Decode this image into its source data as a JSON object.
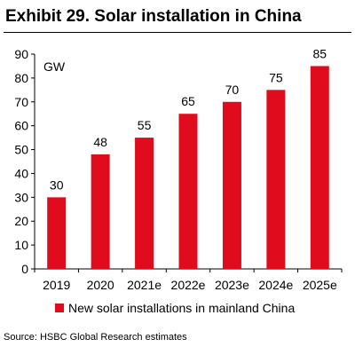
{
  "header": {
    "title": "Exhibit 29. Solar installation in China"
  },
  "footer": {
    "source": "Source: HSBC Global Research estimates"
  },
  "colors": {
    "bar": "#e00b1c",
    "axis": "#000000"
  },
  "chart_data": {
    "type": "bar",
    "title": "",
    "xlabel": "",
    "ylabel": "",
    "unit_label": "GW",
    "categories": [
      "2019",
      "2020",
      "2021e",
      "2022e",
      "2023e",
      "2024e",
      "2025e"
    ],
    "series": [
      {
        "name": "New solar installations in mainland China",
        "values": [
          30,
          48,
          55,
          65,
          70,
          75,
          85
        ]
      }
    ],
    "ylim": [
      0,
      90
    ],
    "yticks": [
      0,
      10,
      20,
      30,
      40,
      50,
      60,
      70,
      80,
      90
    ],
    "data_labels": true,
    "grid": false,
    "legend": "bottom"
  }
}
